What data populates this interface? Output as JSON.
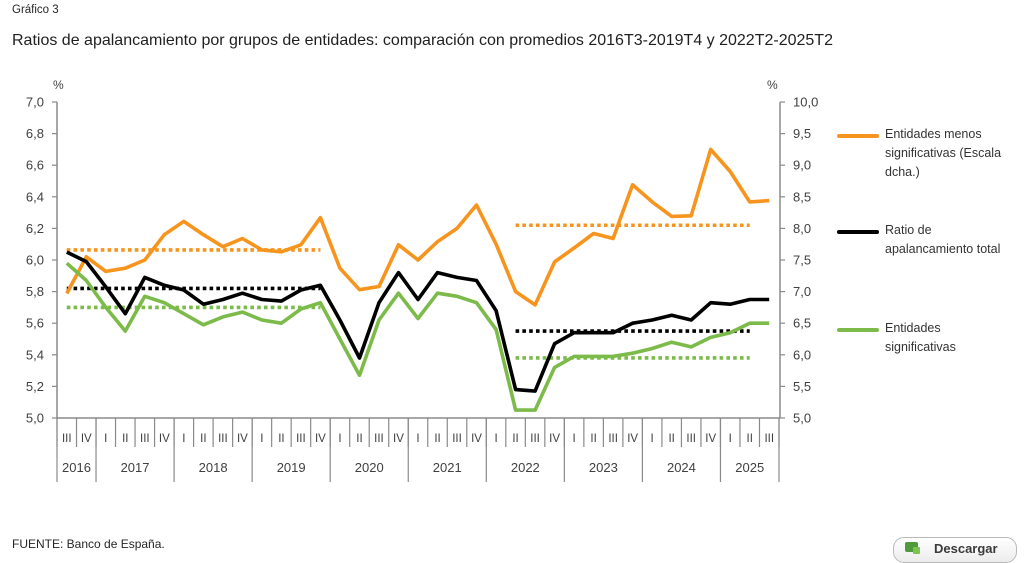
{
  "header": {
    "figure_label": "Gráfico 3",
    "title": "Ratios de apalancamiento por grupos de entidades: comparación con promedios 2016T3-2019T4 y 2022T2-2025T2"
  },
  "legend": {
    "position": "right",
    "items": [
      {
        "series": "menos_significativas",
        "lines": [
          "Entidades menos",
          "significativas (Escala",
          "dcha.)"
        ],
        "color": "#F7941D"
      },
      {
        "series": "total",
        "lines": [
          "Ratio de",
          "apalancamiento total"
        ],
        "color": "#000000"
      },
      {
        "series": "significativas",
        "lines": [
          "Entidades",
          "significativas"
        ],
        "color": "#7CBB4A"
      }
    ]
  },
  "footer": {
    "source": "FUENTE: Banco de España."
  },
  "download_button": {
    "label": "Descargar",
    "icon": "spreadsheet-download-icon"
  },
  "chart_data": {
    "type": "line",
    "title": "Ratios de apalancamiento por grupos de entidades: comparación con promedios 2016T3-2019T4 y 2022T2-2025T2",
    "xlabel": "",
    "grid": false,
    "legend_position": "right",
    "x": {
      "quarters": [
        "III",
        "IV",
        "I",
        "II",
        "III",
        "IV",
        "I",
        "II",
        "III",
        "IV",
        "I",
        "II",
        "III",
        "IV",
        "I",
        "II",
        "III",
        "IV",
        "I",
        "II",
        "III",
        "IV",
        "I",
        "II",
        "III",
        "IV",
        "I",
        "II",
        "III",
        "IV",
        "I",
        "II",
        "III",
        "IV",
        "I",
        "II",
        "III"
      ],
      "years": [
        {
          "label": "2016",
          "quarters": 2
        },
        {
          "label": "2017",
          "quarters": 4
        },
        {
          "label": "2018",
          "quarters": 4
        },
        {
          "label": "2019",
          "quarters": 4
        },
        {
          "label": "2020",
          "quarters": 4
        },
        {
          "label": "2021",
          "quarters": 4
        },
        {
          "label": "2022",
          "quarters": 4
        },
        {
          "label": "2023",
          "quarters": 4
        },
        {
          "label": "2024",
          "quarters": 4
        },
        {
          "label": "2025",
          "quarters": 3
        }
      ]
    },
    "categories": [
      "2016 III",
      "2016 IV",
      "2017 I",
      "2017 II",
      "2017 III",
      "2017 IV",
      "2018 I",
      "2018 II",
      "2018 III",
      "2018 IV",
      "2019 I",
      "2019 II",
      "2019 III",
      "2019 IV",
      "2020 I",
      "2020 II",
      "2020 III",
      "2020 IV",
      "2021 I",
      "2021 II",
      "2021 III",
      "2021 IV",
      "2022 I",
      "2022 II",
      "2022 III",
      "2022 IV",
      "2023 I",
      "2023 II",
      "2023 III",
      "2023 IV",
      "2024 I",
      "2024 II",
      "2024 III",
      "2024 IV",
      "2025 I",
      "2025 II",
      "2025 III"
    ],
    "y_left": {
      "unit_label": "%",
      "range": [
        5.0,
        7.0
      ],
      "ticks": [
        5.0,
        5.2,
        5.4,
        5.6,
        5.8,
        6.0,
        6.2,
        6.4,
        6.6,
        6.8,
        7.0
      ],
      "tick_labels": [
        "5,0",
        "5,2",
        "5,4",
        "5,6",
        "5,8",
        "6,0",
        "6,2",
        "6,4",
        "6,6",
        "6,8",
        "7,0"
      ]
    },
    "y_right": {
      "unit_label": "%",
      "range": [
        5.0,
        10.0
      ],
      "ticks": [
        5.0,
        5.5,
        6.0,
        6.5,
        7.0,
        7.5,
        8.0,
        8.5,
        9.0,
        9.5,
        10.0
      ],
      "tick_labels": [
        "5,0",
        "5,5",
        "6,0",
        "6,5",
        "7,0",
        "7,5",
        "8,0",
        "8,5",
        "9,0",
        "9,5",
        "10,0"
      ]
    },
    "series": [
      {
        "id": "menos_significativas",
        "name": "Entidades menos significativas (Escala dcha.)",
        "axis": "right",
        "color": "#F7941D",
        "values": [
          6.97,
          7.55,
          7.32,
          7.37,
          7.5,
          7.9,
          8.11,
          7.9,
          7.71,
          7.84,
          7.66,
          7.63,
          7.74,
          8.17,
          7.37,
          7.03,
          7.08,
          7.74,
          7.5,
          7.79,
          8.0,
          8.37,
          7.75,
          7.0,
          6.79,
          7.47,
          7.69,
          7.92,
          7.84,
          8.69,
          8.42,
          8.19,
          8.2,
          9.25,
          8.9,
          8.42,
          8.44
        ]
      },
      {
        "id": "significativas",
        "name": "Entidades significativas",
        "axis": "left",
        "color": "#7CBB4A",
        "values": [
          5.98,
          5.87,
          5.7,
          5.55,
          5.77,
          5.73,
          5.66,
          5.59,
          5.64,
          5.67,
          5.62,
          5.6,
          5.69,
          5.73,
          5.5,
          5.27,
          5.62,
          5.79,
          5.63,
          5.79,
          5.77,
          5.73,
          5.56,
          5.05,
          5.05,
          5.32,
          5.39,
          5.39,
          5.39,
          5.41,
          5.44,
          5.48,
          5.45,
          5.51,
          5.54,
          5.6,
          5.6
        ]
      },
      {
        "id": "total",
        "name": "Ratio de apalancamiento total",
        "axis": "left",
        "color": "#000000",
        "values": [
          6.05,
          5.99,
          5.83,
          5.66,
          5.89,
          5.84,
          5.81,
          5.72,
          5.75,
          5.79,
          5.75,
          5.74,
          5.81,
          5.84,
          5.62,
          5.38,
          5.73,
          5.92,
          5.75,
          5.92,
          5.89,
          5.87,
          5.68,
          5.18,
          5.17,
          5.47,
          5.54,
          5.54,
          5.54,
          5.6,
          5.62,
          5.65,
          5.62,
          5.73,
          5.72,
          5.75,
          5.75
        ]
      }
    ],
    "reference_lines": [
      {
        "series": "menos_significativas",
        "period": "2016T3-2019T4",
        "axis": "right",
        "value": 7.66,
        "from": "2016 III",
        "to": "2019 IV",
        "color": "#F7941D",
        "style": "dotted"
      },
      {
        "series": "total",
        "period": "2016T3-2019T4",
        "axis": "left",
        "value": 5.82,
        "from": "2016 III",
        "to": "2019 IV",
        "color": "#000000",
        "style": "dotted"
      },
      {
        "series": "significativas",
        "period": "2016T3-2019T4",
        "axis": "left",
        "value": 5.7,
        "from": "2016 III",
        "to": "2019 IV",
        "color": "#7CBB4A",
        "style": "dotted"
      },
      {
        "series": "menos_significativas",
        "period": "2022T2-2025T2",
        "axis": "right",
        "value": 8.05,
        "from": "2022 II",
        "to": "2025 II",
        "color": "#F7941D",
        "style": "dotted"
      },
      {
        "series": "total",
        "period": "2022T2-2025T2",
        "axis": "left",
        "value": 5.55,
        "from": "2022 II",
        "to": "2025 II",
        "color": "#000000",
        "style": "dotted"
      },
      {
        "series": "significativas",
        "period": "2022T2-2025T2",
        "axis": "left",
        "value": 5.38,
        "from": "2022 II",
        "to": "2025 II",
        "color": "#7CBB4A",
        "style": "dotted"
      }
    ]
  }
}
